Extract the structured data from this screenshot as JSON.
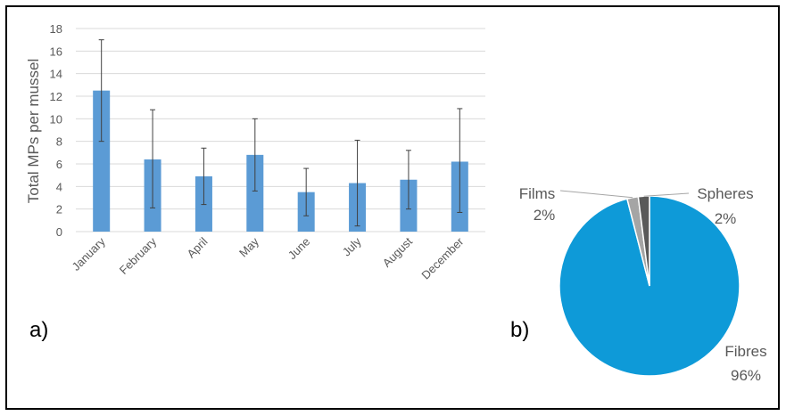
{
  "chart_data": [
    {
      "type": "bar",
      "ylabel": "Total MPs per mussel",
      "ylim": [
        0,
        18
      ],
      "yticks": [
        0,
        2,
        4,
        6,
        8,
        10,
        12,
        14,
        16,
        18
      ],
      "grid": true,
      "bar_color": "#5b9bd5",
      "categories": [
        "January",
        "February",
        "April",
        "May",
        "June",
        "July",
        "August",
        "December"
      ],
      "values": [
        12.5,
        6.4,
        4.9,
        6.8,
        3.5,
        4.3,
        4.6,
        6.2
      ],
      "error_low": [
        8.0,
        2.1,
        2.4,
        3.6,
        1.4,
        0.5,
        2.0,
        1.7
      ],
      "error_high": [
        17.0,
        10.8,
        7.4,
        10.0,
        5.6,
        8.1,
        7.2,
        10.9
      ],
      "panel_label": "a)"
    },
    {
      "type": "pie",
      "slices": [
        {
          "label": "Fibres",
          "value": 96,
          "value_label": "96%",
          "color": "#0e9ad8"
        },
        {
          "label": "Films",
          "value": 2,
          "value_label": "2%",
          "color": "#a5a5a5"
        },
        {
          "label": "Spheres",
          "value": 2,
          "value_label": "2%",
          "color": "#595959"
        }
      ],
      "panel_label": "b)"
    }
  ]
}
